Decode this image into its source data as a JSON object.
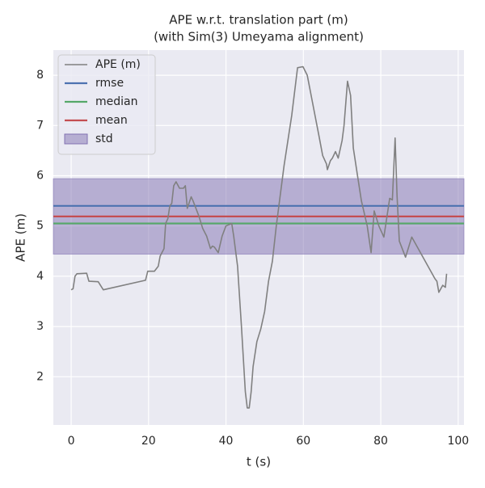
{
  "chart_data": {
    "type": "line",
    "title": "APE w.r.t. translation part (m)",
    "subtitle": "(with Sim(3) Umeyama alignment)",
    "xlabel": "t (s)",
    "ylabel": "APE (m)",
    "x": [
      0,
      0.5,
      1,
      1.5,
      4,
      4.6,
      7,
      8.3,
      19.2,
      19.8,
      21.5,
      22.5,
      23,
      24,
      24.4,
      25,
      25.5,
      26,
      26.5,
      27.1,
      28,
      29,
      29.5,
      30,
      31,
      31.5,
      32,
      33,
      34,
      35,
      36,
      36.5,
      37,
      38,
      39,
      40,
      41.5,
      42,
      43,
      44,
      45,
      45.5,
      46,
      46.5,
      47,
      48,
      49,
      50,
      51,
      52,
      53,
      55,
      57,
      58.5,
      59.9,
      61,
      62,
      63,
      64,
      65,
      66,
      66.2,
      67,
      67.5,
      68.3,
      69,
      70,
      70.5,
      71.4,
      72.2,
      72.9,
      74,
      75,
      76.5,
      77.5,
      78.3,
      79.5,
      80.8,
      82.3,
      83,
      83.7,
      84.2,
      84.8,
      86.4,
      88,
      94,
      94.5,
      95,
      96,
      96.7,
      97
    ],
    "series": [
      {
        "name": "APE (m)",
        "color": "#808080",
        "values": [
          3.73,
          3.75,
          4.0,
          4.05,
          4.06,
          3.9,
          3.89,
          3.73,
          3.92,
          4.1,
          4.1,
          4.2,
          4.4,
          4.55,
          5.05,
          5.15,
          5.4,
          5.45,
          5.8,
          5.88,
          5.75,
          5.75,
          5.8,
          5.35,
          5.58,
          5.5,
          5.4,
          5.2,
          4.95,
          4.8,
          4.55,
          4.6,
          4.58,
          4.47,
          4.8,
          5.0,
          5.05,
          4.8,
          4.2,
          3.0,
          1.7,
          1.38,
          1.38,
          1.7,
          2.2,
          2.7,
          2.95,
          3.3,
          3.9,
          4.3,
          5.0,
          6.2,
          7.2,
          8.15,
          8.17,
          8.0,
          7.6,
          7.2,
          6.8,
          6.4,
          6.23,
          6.12,
          6.3,
          6.35,
          6.48,
          6.35,
          6.7,
          7.0,
          7.88,
          7.6,
          6.55,
          6.0,
          5.5,
          5.0,
          4.47,
          5.3,
          5.0,
          4.78,
          5.55,
          5.52,
          6.75,
          5.6,
          4.7,
          4.38,
          4.78,
          3.95,
          3.9,
          3.68,
          3.82,
          3.78,
          4.05
        ]
      }
    ],
    "hlines": [
      {
        "name": "rmse",
        "color": "#4c72b0",
        "value": 5.4
      },
      {
        "name": "median",
        "color": "#55a868",
        "value": 5.05
      },
      {
        "name": "mean",
        "color": "#c44e52",
        "value": 5.19
      }
    ],
    "band": {
      "name": "std",
      "color": "#8172b2",
      "value": 0.75
    },
    "xlim": [
      -4.6,
      101.5
    ],
    "ylim": [
      1.04,
      8.5
    ],
    "xticks": [
      0,
      20,
      40,
      60,
      80,
      100
    ],
    "yticks": [
      2,
      3,
      4,
      5,
      6,
      7,
      8
    ],
    "grid": true,
    "legend": "upper left"
  }
}
